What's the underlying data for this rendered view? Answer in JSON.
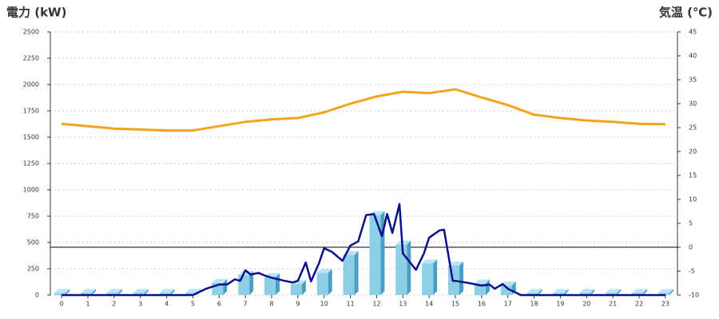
{
  "chart_data": {
    "type": "bar",
    "title_left": "電力 (kW)",
    "title_right": "気温 (℃)",
    "title_left_color": "#1a6fb4",
    "title_right_color": "#f07f1c",
    "x": [
      0,
      1,
      2,
      3,
      4,
      5,
      6,
      7,
      8,
      9,
      10,
      11,
      12,
      13,
      14,
      15,
      16,
      17,
      18,
      19,
      20,
      21,
      22,
      23
    ],
    "xlim": [
      -0.43,
      23.46
    ],
    "xticks": [
      0,
      1,
      2,
      3,
      4,
      5,
      6,
      7,
      8,
      9,
      10,
      11,
      12,
      13,
      14,
      15,
      16,
      17,
      18,
      19,
      20,
      21,
      22,
      23
    ],
    "ylim": [
      0,
      2500
    ],
    "yticks": [
      0,
      250,
      500,
      750,
      1000,
      1250,
      1500,
      1750,
      2000,
      2250,
      2500
    ],
    "y2lim": [
      -10,
      45
    ],
    "y2ticks": [
      -10,
      -5,
      0,
      5,
      10,
      15,
      20,
      25,
      30,
      35,
      40,
      45
    ],
    "grid": true,
    "series": [
      {
        "type": "bar",
        "color": "#8ecfe8",
        "values": [
          20,
          20,
          20,
          20,
          20,
          20,
          115,
          190,
          170,
          105,
          210,
          380,
          760,
          480,
          300,
          280,
          110,
          90,
          20,
          20,
          20,
          20,
          20,
          20
        ]
      },
      {
        "type": "line",
        "color": "#0a0f8a",
        "x": [
          0,
          5,
          5.5,
          6,
          6.3,
          6.6,
          6.8,
          7,
          7.2,
          7.5,
          7.8,
          8,
          8.5,
          8.8,
          9,
          9.3,
          9.5,
          9.8,
          10,
          10.3,
          10.7,
          11,
          11.3,
          11.6,
          11.9,
          12.2,
          12.4,
          12.6,
          12.87,
          13,
          13.5,
          13.8,
          14,
          14.4,
          14.57,
          14.9,
          15,
          15.5,
          16,
          16.3,
          16.5,
          16.8,
          17,
          17.5,
          23
        ],
        "values": [
          0,
          0,
          60,
          100,
          100,
          150,
          135,
          235,
          195,
          210,
          180,
          165,
          135,
          120,
          135,
          310,
          130,
          300,
          445,
          410,
          325,
          470,
          510,
          760,
          770,
          560,
          770,
          590,
          865,
          395,
          240,
          395,
          545,
          615,
          620,
          135,
          135,
          115,
          90,
          100,
          60,
          105,
          60,
          0,
          0
        ]
      },
      {
        "type": "line",
        "axis": "y2",
        "color": "#f5a31a",
        "values": [
          25.8,
          25.3,
          24.8,
          24.6,
          24.4,
          24.4,
          25.3,
          26.2,
          26.7,
          27.0,
          28.2,
          30.0,
          31.5,
          32.5,
          32.2,
          33.0,
          31.3,
          29.7,
          27.7,
          27.0,
          26.5,
          26.2,
          25.8,
          25.7
        ]
      }
    ]
  }
}
